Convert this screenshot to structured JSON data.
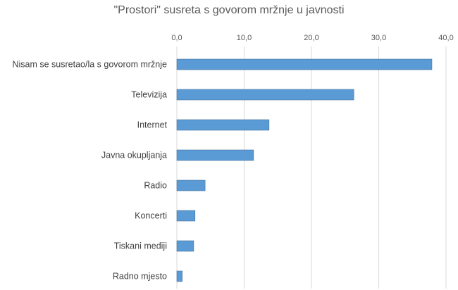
{
  "chart_data": {
    "type": "bar",
    "orientation": "horizontal",
    "title": "\"Prostori\" susreta s govorom mržnje u javnosti",
    "xlabel": "",
    "ylabel": "",
    "xlim": [
      0,
      40
    ],
    "ticks": [
      0,
      10,
      20,
      30,
      40
    ],
    "tick_labels": [
      "0,0",
      "10,0",
      "20,0",
      "30,0",
      "40,0"
    ],
    "axis_position": "top",
    "grid": true,
    "legend": "none",
    "categories": [
      "Nisam se susretao/la s govorom mržnje",
      "Televizija",
      "Internet",
      "Javna okupljanja",
      "Radio",
      "Koncerti",
      "Tiskani mediji",
      "Radno mjesto"
    ],
    "values": [
      37.9,
      26.3,
      13.7,
      11.4,
      4.2,
      2.7,
      2.5,
      0.8
    ],
    "colors": {
      "bar": "#5b9bd5",
      "bar_border": "#41719c",
      "grid": "#d9d9d9"
    }
  }
}
